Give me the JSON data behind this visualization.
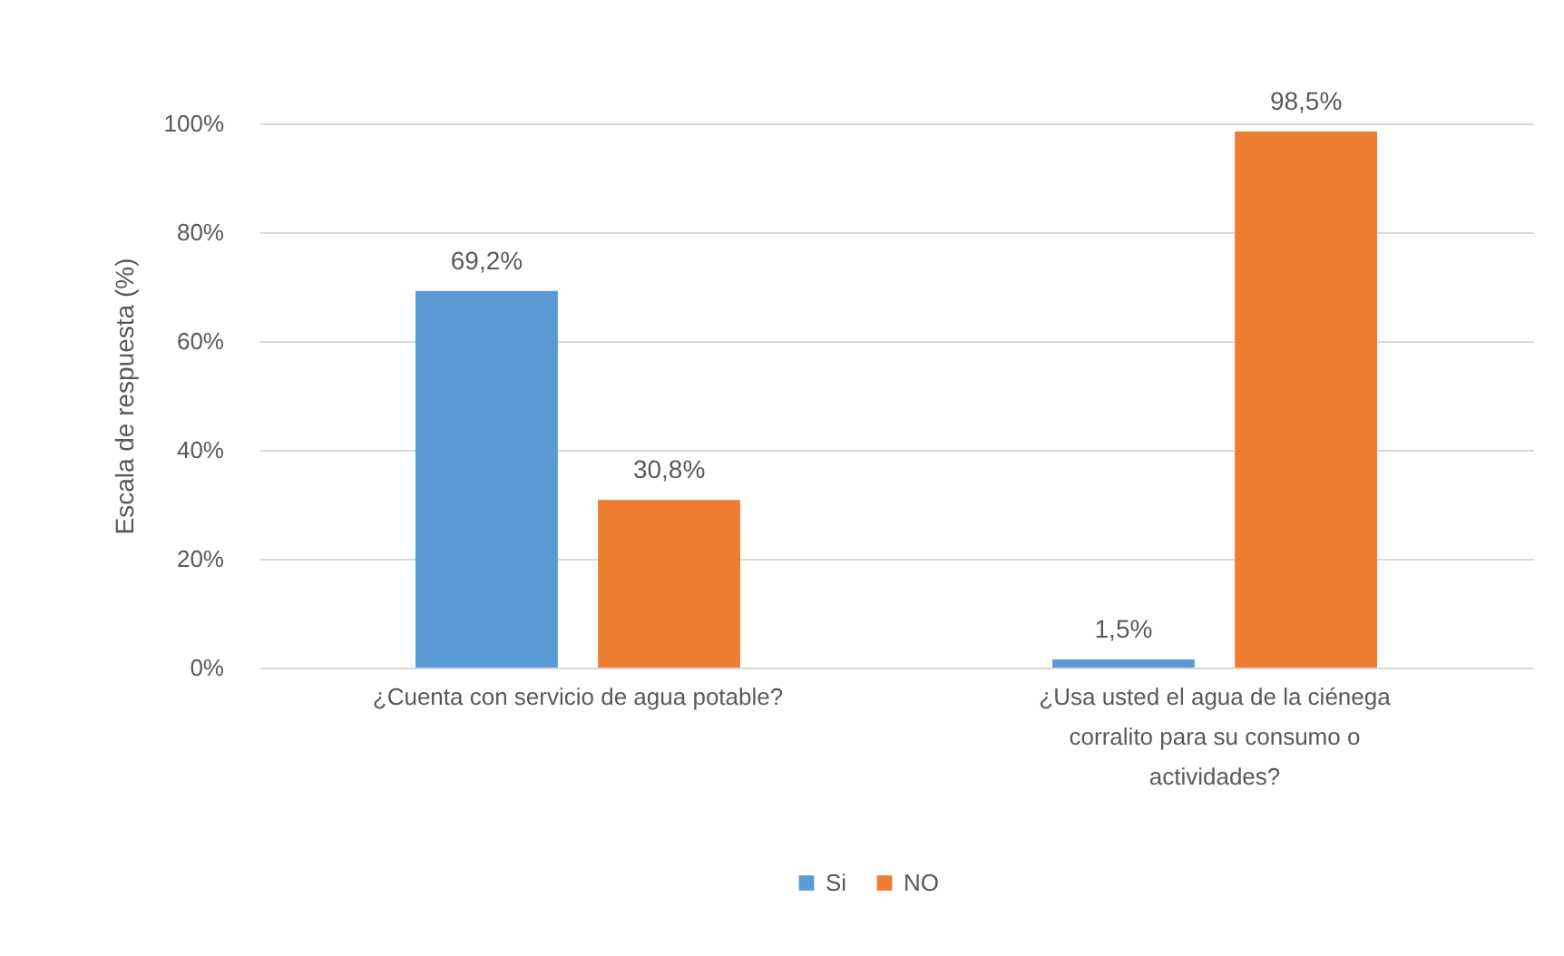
{
  "chart_data": {
    "type": "bar",
    "ylabel": "Escala de respuesta (%)",
    "categories": [
      "¿Cuenta con servicio de agua potable?",
      "¿Usa usted el agua de la ciénega corralito para su consumo o actividades?"
    ],
    "series": [
      {
        "name": "Si",
        "color": "#5b9bd5",
        "values": [
          69.2,
          1.5
        ],
        "value_labels": [
          "69,2%",
          "1,5%"
        ]
      },
      {
        "name": "NO",
        "color": "#ed7d31",
        "values": [
          30.8,
          98.5
        ],
        "value_labels": [
          "30,8%",
          "98,5%"
        ]
      }
    ],
    "ylim": [
      0,
      100
    ],
    "yticks": [
      {
        "value": 0,
        "label": "0%"
      },
      {
        "value": 20,
        "label": "20%"
      },
      {
        "value": 40,
        "label": "40%"
      },
      {
        "value": 60,
        "label": "60%"
      },
      {
        "value": 80,
        "label": "80%"
      },
      {
        "value": 100,
        "label": "100%"
      }
    ],
    "grid": "y",
    "legend": "bottom"
  }
}
